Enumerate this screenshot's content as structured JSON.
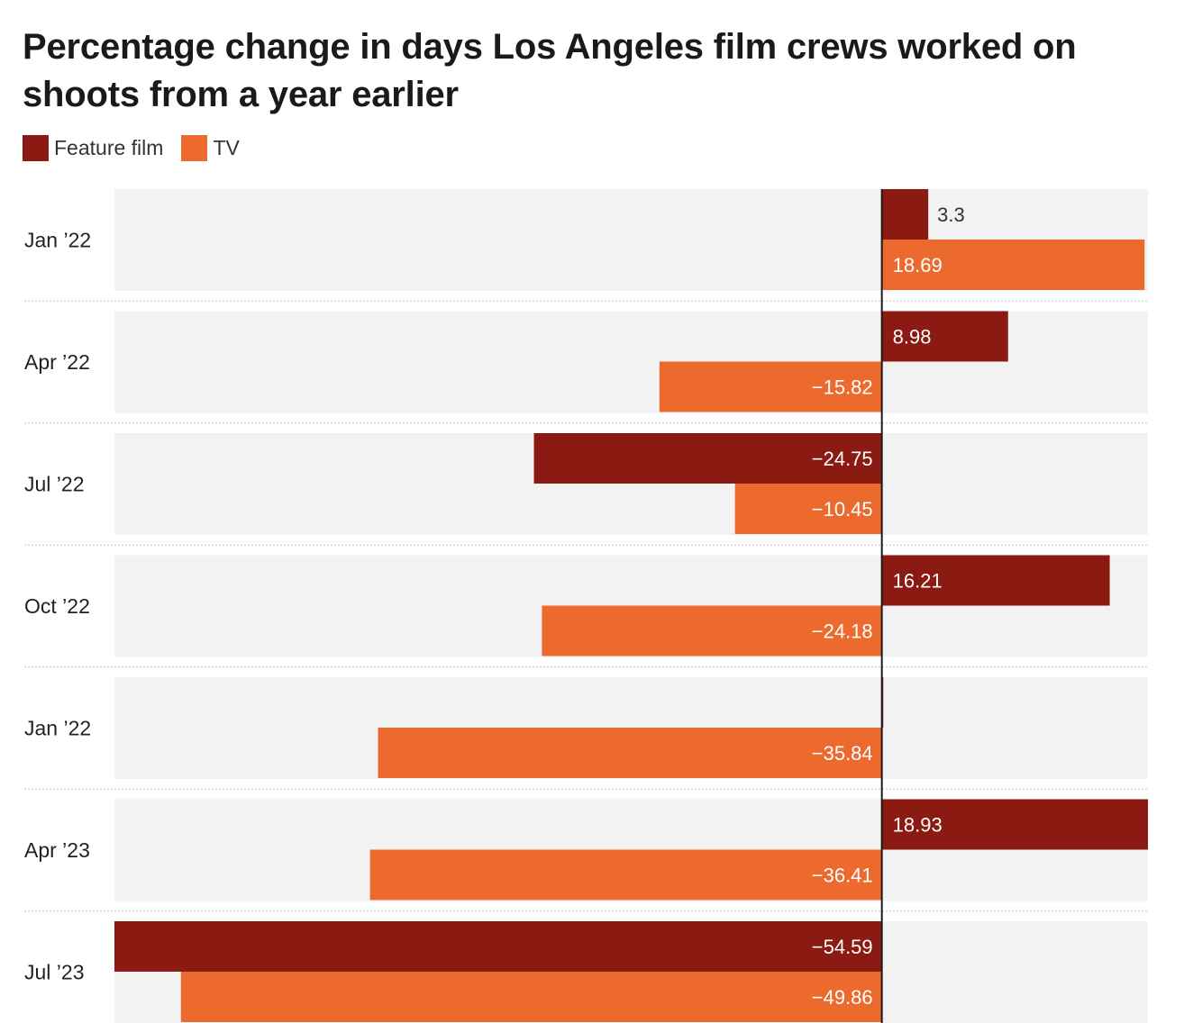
{
  "title": "Percentage change in days Los Angeles film crews worked on shoots from a year earlier",
  "colors": {
    "feature_film": "#8b1a12",
    "tv": "#ec6a2e",
    "row_bg": "#f2f2f2",
    "zero_line": "#1a1a1a",
    "label_inside": "#ffffff",
    "label_outside": "#333333",
    "separator": "#cccccc"
  },
  "legend": [
    {
      "label": "Feature film",
      "color": "#8b1a12"
    },
    {
      "label": "TV",
      "color": "#ec6a2e"
    }
  ],
  "chart_data": {
    "type": "bar",
    "orientation": "horizontal",
    "title": "Percentage change in days Los Angeles film crews worked on shoots from a year earlier",
    "categories": [
      "Jan ’22",
      "Apr ’22",
      "Jul ’22",
      "Oct ’22",
      "Jan ’22",
      "Apr ’23",
      "Jul ’23"
    ],
    "series": [
      {
        "name": "Feature film",
        "values": [
          3.3,
          8.98,
          -24.75,
          16.21,
          0.1,
          18.93,
          -54.59
        ]
      },
      {
        "name": "TV",
        "values": [
          18.69,
          -15.82,
          -10.45,
          -24.18,
          -35.84,
          -36.41,
          -49.86
        ]
      }
    ],
    "value_labels": [
      [
        "3.3",
        "8.98",
        "−24.75",
        "16.21",
        "",
        "18.93",
        "−54.59"
      ],
      [
        "18.69",
        "−15.82",
        "−10.45",
        "−24.18",
        "−35.84",
        "−36.41",
        "−49.86"
      ]
    ],
    "xlim": [
      -54.59,
      18.93
    ],
    "xlabel": "",
    "ylabel": "",
    "grid": false,
    "legend_position": "top-left"
  }
}
